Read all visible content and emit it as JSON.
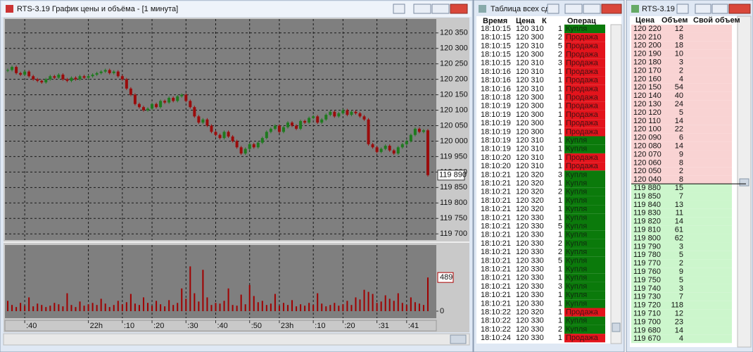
{
  "chart_window_title": "RTS-3.19 График цены и объёма - [1 минута]",
  "chart_data": {
    "type": "candlestick",
    "x": [
      null,
      null,
      null,
      null,
      ":40",
      null,
      null,
      null,
      null,
      null,
      null,
      null,
      null,
      null,
      null,
      null,
      null,
      null,
      null,
      "22h",
      null,
      null,
      null,
      null,
      null,
      null,
      null,
      ":10",
      null,
      null,
      null,
      null,
      null,
      null,
      ":20",
      null,
      null,
      null,
      null,
      null,
      null,
      null,
      ":30",
      null,
      null,
      null,
      null,
      null,
      null,
      ":40",
      null,
      null,
      null,
      null,
      null,
      null,
      null,
      ":50",
      null,
      null,
      null,
      null,
      null,
      null,
      "23h",
      null,
      null,
      null,
      null,
      null,
      null,
      null,
      ":10",
      null,
      null,
      null,
      null,
      null,
      null,
      ":20",
      null,
      null,
      null,
      null,
      null,
      null,
      null,
      ":31",
      null,
      null,
      null,
      null,
      null,
      null,
      ":41",
      null,
      null,
      null,
      null,
      null
    ],
    "close": [
      120230,
      120240,
      120220,
      120215,
      120225,
      120210,
      120200,
      120195,
      120190,
      120200,
      120210,
      120205,
      120215,
      120200,
      120195,
      120205,
      120200,
      120210,
      120205,
      120210,
      120215,
      120220,
      120225,
      120230,
      120220,
      120225,
      120210,
      120200,
      120170,
      120150,
      120120,
      120110,
      120100,
      120105,
      120120,
      120110,
      120130,
      120125,
      120140,
      120130,
      120145,
      120150,
      120130,
      120110,
      120080,
      120060,
      120070,
      120050,
      120030,
      120020,
      120010,
      120030,
      120015,
      120000,
      119980,
      119960,
      119975,
      119990,
      119980,
      119995,
      120010,
      120030,
      120040,
      120050,
      120030,
      120045,
      120060,
      120050,
      120040,
      120065,
      120060,
      120075,
      120080,
      120060,
      120070,
      120085,
      120095,
      120080,
      120090,
      120100,
      120085,
      120095,
      120090,
      120080,
      120070,
      119990,
      119980,
      119965,
      119975,
      119985,
      119970,
      119960,
      119980,
      119990,
      120000,
      120020,
      120040,
      120030,
      120035,
      119890
    ],
    "ylim": [
      119680,
      120395
    ],
    "yticks": [
      {
        "value": 120350,
        "label": "120 350"
      },
      {
        "value": 120300,
        "label": "120 300"
      },
      {
        "value": 120250,
        "label": "120 250"
      },
      {
        "value": 120200,
        "label": "120 200"
      },
      {
        "value": 120150,
        "label": "120 150"
      },
      {
        "value": 120100,
        "label": "120 100"
      },
      {
        "value": 120050,
        "label": "120 050"
      },
      {
        "value": 120000,
        "label": "120 000"
      },
      {
        "value": 119950,
        "label": "119 950"
      },
      {
        "value": 119900,
        "label": "119 900"
      },
      {
        "value": 119850,
        "label": "119 850"
      },
      {
        "value": 119800,
        "label": "119 800"
      },
      {
        "value": 119750,
        "label": "119 750"
      },
      {
        "value": 119700,
        "label": "119 700"
      }
    ],
    "grid": true,
    "up_color": "#1f7a1f",
    "down_color": "#9a0c0c",
    "last_price": {
      "value": 119890,
      "label": "119 890"
    },
    "volume": {
      "values": [
        150,
        90,
        60,
        120,
        80,
        200,
        70,
        110,
        90,
        60,
        80,
        120,
        100,
        70,
        260,
        90,
        60,
        140,
        80,
        100,
        120,
        90,
        180,
        110,
        60,
        90,
        150,
        100,
        130,
        250,
        110,
        90,
        200,
        120,
        80,
        150,
        100,
        70,
        160,
        90,
        120,
        330,
        180,
        650,
        260,
        140,
        600,
        200,
        90,
        120,
        110,
        150,
        330,
        90,
        80,
        240,
        100,
        380,
        220,
        130,
        150,
        90,
        110,
        250,
        80,
        120,
        90,
        160,
        70,
        100,
        80,
        120,
        90,
        260,
        110,
        70,
        90,
        120,
        80,
        100,
        150,
        90,
        200,
        170,
        310,
        280,
        250,
        120,
        140,
        230,
        180,
        150,
        260,
        120,
        90,
        200,
        130,
        110,
        90,
        489
      ],
      "ylim": [
        0,
        940
      ],
      "yticks": [
        0
      ],
      "last": 489,
      "color": "#a00000"
    }
  },
  "trades": {
    "title": "Таблица всех сде",
    "columns": [
      "Время",
      "Цена",
      "К",
      "Операц"
    ],
    "rows": [
      [
        "18:10:15",
        "120 310",
        1,
        "Купля"
      ],
      [
        "18:10:15",
        "120 300",
        2,
        "Продажа"
      ],
      [
        "18:10:15",
        "120 310",
        5,
        "Продажа"
      ],
      [
        "18:10:15",
        "120 300",
        2,
        "Продажа"
      ],
      [
        "18:10:15",
        "120 310",
        3,
        "Продажа"
      ],
      [
        "18:10:16",
        "120 310",
        1,
        "Продажа"
      ],
      [
        "18:10:16",
        "120 310",
        1,
        "Продажа"
      ],
      [
        "18:10:16",
        "120 310",
        1,
        "Продажа"
      ],
      [
        "18:10:18",
        "120 300",
        1,
        "Продажа"
      ],
      [
        "18:10:19",
        "120 300",
        1,
        "Продажа"
      ],
      [
        "18:10:19",
        "120 300",
        1,
        "Продажа"
      ],
      [
        "18:10:19",
        "120 300",
        1,
        "Продажа"
      ],
      [
        "18:10:19",
        "120 300",
        1,
        "Продажа"
      ],
      [
        "18:10:19",
        "120 310",
        1,
        "Купля"
      ],
      [
        "18:10:19",
        "120 310",
        1,
        "Купля"
      ],
      [
        "18:10:20",
        "120 310",
        1,
        "Продажа"
      ],
      [
        "18:10:20",
        "120 310",
        1,
        "Продажа"
      ],
      [
        "18:10:21",
        "120 320",
        3,
        "Купля"
      ],
      [
        "18:10:21",
        "120 320",
        1,
        "Купля"
      ],
      [
        "18:10:21",
        "120 320",
        2,
        "Купля"
      ],
      [
        "18:10:21",
        "120 320",
        1,
        "Купля"
      ],
      [
        "18:10:21",
        "120 320",
        1,
        "Купля"
      ],
      [
        "18:10:21",
        "120 330",
        1,
        "Купля"
      ],
      [
        "18:10:21",
        "120 330",
        5,
        "Купля"
      ],
      [
        "18:10:21",
        "120 330",
        1,
        "Купля"
      ],
      [
        "18:10:21",
        "120 330",
        2,
        "Купля"
      ],
      [
        "18:10:21",
        "120 330",
        2,
        "Купля"
      ],
      [
        "18:10:21",
        "120 330",
        5,
        "Купля"
      ],
      [
        "18:10:21",
        "120 330",
        1,
        "Купля"
      ],
      [
        "18:10:21",
        "120 330",
        1,
        "Купля"
      ],
      [
        "18:10:21",
        "120 330",
        3,
        "Купля"
      ],
      [
        "18:10:21",
        "120 330",
        1,
        "Купля"
      ],
      [
        "18:10:21",
        "120 330",
        1,
        "Купля"
      ],
      [
        "18:10:22",
        "120 320",
        1,
        "Продажа"
      ],
      [
        "18:10:22",
        "120 330",
        1,
        "Купля"
      ],
      [
        "18:10:22",
        "120 330",
        2,
        "Купля"
      ],
      [
        "18:10:24",
        "120 330",
        1,
        "Продажа"
      ]
    ],
    "operation_colors": {
      "Купля": "#0b7a0b",
      "Продажа": "#e3141c"
    }
  },
  "order_book": {
    "title": "RTS-3.19 [",
    "columns": [
      "Цена",
      "Объем",
      "Свой объем"
    ],
    "asks": [
      [
        "120 220",
        12
      ],
      [
        "120 210",
        8
      ],
      [
        "120 200",
        18
      ],
      [
        "120 190",
        10
      ],
      [
        "120 180",
        3
      ],
      [
        "120 170",
        2
      ],
      [
        "120 160",
        4
      ],
      [
        "120 150",
        54
      ],
      [
        "120 140",
        40
      ],
      [
        "120 130",
        24
      ],
      [
        "120 120",
        5
      ],
      [
        "120 110",
        14
      ],
      [
        "120 100",
        22
      ],
      [
        "120 090",
        6
      ],
      [
        "120 080",
        14
      ],
      [
        "120 070",
        9
      ],
      [
        "120 060",
        8
      ],
      [
        "120 050",
        2
      ],
      [
        "120 040",
        8
      ]
    ],
    "bids": [
      [
        "119 880",
        15
      ],
      [
        "119 850",
        7
      ],
      [
        "119 840",
        13
      ],
      [
        "119 830",
        11
      ],
      [
        "119 820",
        14
      ],
      [
        "119 810",
        61
      ],
      [
        "119 800",
        62
      ],
      [
        "119 790",
        3
      ],
      [
        "119 780",
        5
      ],
      [
        "119 770",
        2
      ],
      [
        "119 760",
        9
      ],
      [
        "119 750",
        5
      ],
      [
        "119 740",
        3
      ],
      [
        "119 730",
        7
      ],
      [
        "119 720",
        118
      ],
      [
        "119 710",
        12
      ],
      [
        "119 700",
        23
      ],
      [
        "119 680",
        14
      ],
      [
        "119 670",
        4
      ]
    ],
    "ask_color": "#f9d3d3",
    "bid_color": "#ccf6cc"
  }
}
